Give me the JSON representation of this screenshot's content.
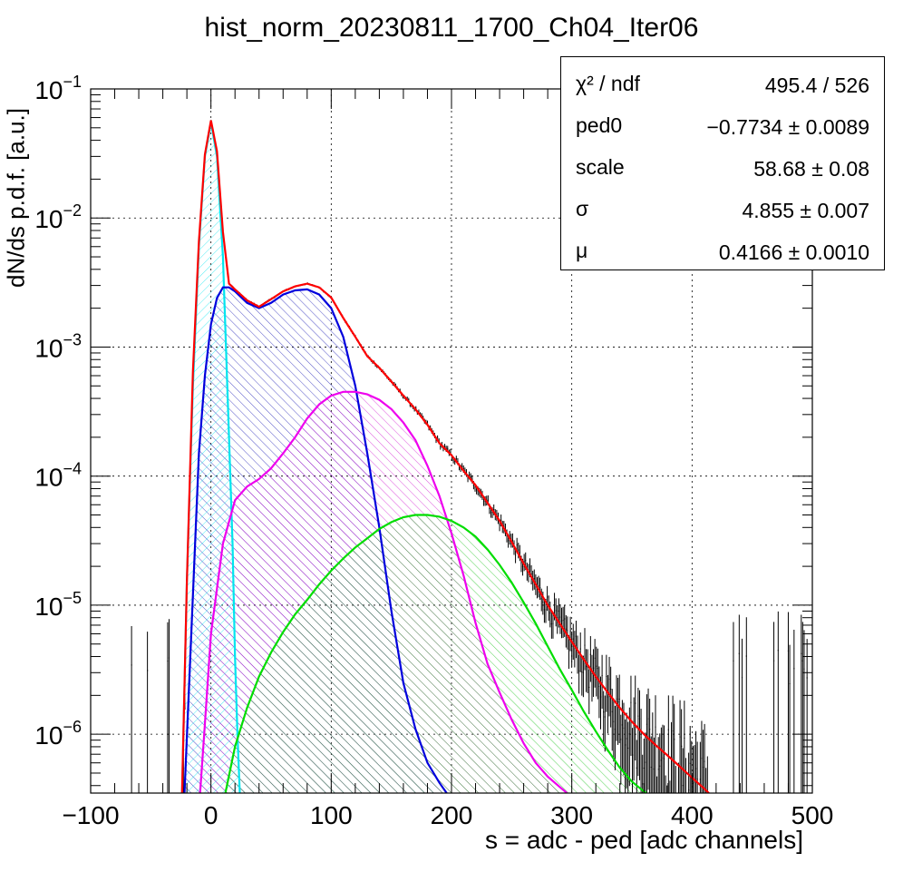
{
  "chart_data": {
    "type": "line",
    "title": "hist_norm_20230811_1700_Ch04_Iter06",
    "xlabel": "s = adc - ped [adc channels]",
    "ylabel": "dN/ds p.d.f. [a.u.]",
    "xlim": [
      -100,
      500
    ],
    "ylim": [
      3.5e-07,
      0.1
    ],
    "yscale": "log",
    "grid": true,
    "xticks": [
      -100,
      0,
      100,
      200,
      300,
      400,
      500
    ],
    "xtick_labels": [
      "−100",
      "0",
      "100",
      "200",
      "300",
      "400",
      "500"
    ],
    "yticks": [
      1e-06,
      1e-05,
      0.0001,
      0.001,
      0.01,
      0.1
    ],
    "ytick_labels": [
      {
        "base": "10",
        "exp": "−6"
      },
      {
        "base": "10",
        "exp": "−5"
      },
      {
        "base": "10",
        "exp": "−4"
      },
      {
        "base": "10",
        "exp": "−3"
      },
      {
        "base": "10",
        "exp": "−2"
      },
      {
        "base": "10",
        "exp": "−1"
      }
    ],
    "series": [
      {
        "color": "#00e5ee",
        "x": [
          -24,
          -20,
          -15,
          -10,
          -5,
          0,
          5,
          10,
          15,
          18,
          20,
          22,
          24
        ],
        "y": [
          3.5e-07,
          1.5e-05,
          0.0005,
          0.006,
          0.03,
          0.055,
          0.03,
          0.005,
          0.0002,
          3e-05,
          4e-06,
          1e-06,
          3.5e-07
        ]
      },
      {
        "color": "#0000dd",
        "x": [
          -22,
          -15,
          -10,
          -5,
          0,
          5,
          10,
          15,
          20,
          30,
          40,
          50,
          60,
          70,
          80,
          90,
          100,
          110,
          120,
          130,
          140,
          150,
          160,
          170,
          180,
          190,
          196
        ],
        "y": [
          3.5e-07,
          1.2e-05,
          0.00015,
          0.0006,
          0.0015,
          0.0024,
          0.0029,
          0.0029,
          0.0027,
          0.0022,
          0.002,
          0.0022,
          0.00255,
          0.00275,
          0.0028,
          0.00255,
          0.002,
          0.0012,
          0.0005,
          0.00015,
          4e-05,
          9e-06,
          2.5e-06,
          1.1e-06,
          6e-07,
          4.2e-07,
          3.5e-07
        ]
      },
      {
        "color": "#ee00ee",
        "x": [
          -9,
          -5,
          0,
          10,
          20,
          30,
          40,
          50,
          60,
          70,
          80,
          90,
          100,
          110,
          120,
          130,
          140,
          150,
          160,
          170,
          180,
          190,
          200,
          210,
          220,
          230,
          240,
          250,
          260,
          270,
          280,
          290,
          296
        ],
        "y": [
          3.5e-07,
          1.2e-06,
          6e-06,
          3e-05,
          6.5e-05,
          8.3e-05,
          9.5e-05,
          0.000115,
          0.00015,
          0.0002,
          0.00028,
          0.00036,
          0.00042,
          0.00045,
          0.00045,
          0.00043,
          0.00039,
          0.00033,
          0.00026,
          0.00019,
          0.00012,
          7e-05,
          3.6e-05,
          1.7e-05,
          7.3e-06,
          3.5e-06,
          2.1e-06,
          1.3e-06,
          8.5e-07,
          6e-07,
          4.7e-07,
          3.9e-07,
          3.5e-07
        ]
      },
      {
        "color": "#00dd00",
        "x": [
          12,
          20,
          30,
          40,
          50,
          60,
          70,
          80,
          90,
          100,
          110,
          120,
          130,
          140,
          150,
          160,
          170,
          180,
          190,
          200,
          210,
          220,
          230,
          240,
          250,
          260,
          270,
          280,
          290,
          300,
          310,
          320,
          330,
          340,
          350,
          360,
          362
        ],
        "y": [
          3.5e-07,
          8e-07,
          1.6e-06,
          2.8e-06,
          4.3e-06,
          6.2e-06,
          8.5e-06,
          1.1e-05,
          1.45e-05,
          1.85e-05,
          2.3e-05,
          2.8e-05,
          3.3e-05,
          3.9e-05,
          4.4e-05,
          4.8e-05,
          5e-05,
          5e-05,
          4.85e-05,
          4.5e-05,
          4e-05,
          3.4e-05,
          2.7e-05,
          2.05e-05,
          1.5e-05,
          1.05e-05,
          7.2e-06,
          4.8e-06,
          3.2e-06,
          2.2e-06,
          1.5e-06,
          1.05e-06,
          7.5e-07,
          5.5e-07,
          4.3e-07,
          3.6e-07,
          3.5e-07
        ]
      },
      {
        "color": "#ff0000",
        "x": [
          -24,
          -20,
          -15,
          -10,
          -5,
          0,
          5,
          10,
          15,
          20,
          30,
          40,
          50,
          60,
          70,
          80,
          90,
          100,
          110,
          120,
          130,
          140,
          150,
          160,
          170,
          180,
          190,
          200,
          210,
          220,
          230,
          240,
          250,
          260,
          270,
          280,
          290,
          300,
          310,
          320,
          330,
          340,
          350,
          360,
          370,
          380,
          390,
          400,
          410,
          414
        ],
        "y": [
          3.5e-07,
          1.5e-05,
          0.00065,
          0.0066,
          0.031,
          0.057,
          0.033,
          0.0078,
          0.0031,
          0.0028,
          0.0023,
          0.00205,
          0.00235,
          0.0027,
          0.00295,
          0.0031,
          0.0029,
          0.00242,
          0.00168,
          0.0012,
          0.00085,
          0.00069,
          0.00054,
          0.00042,
          0.00033,
          0.00025,
          0.00018,
          0.000145,
          0.00011,
          8.5e-05,
          6.2e-05,
          4.5e-05,
          3.1e-05,
          2.1e-05,
          1.45e-05,
          1e-05,
          7.2e-06,
          5.2e-06,
          3.8e-06,
          2.8e-06,
          2.1e-06,
          1.6e-06,
          1.25e-06,
          1e-06,
          8.2e-07,
          6.8e-07,
          5.6e-07,
          4.6e-07,
          3.8e-07,
          3.5e-07
        ]
      }
    ],
    "stats": [
      {
        "name": "χ² / ndf",
        "value": "495.4 / 526"
      },
      {
        "name": "ped0",
        "value": "−0.7734 ± 0.0089"
      },
      {
        "name": "scale",
        "value": "58.68 ± 0.08"
      },
      {
        "name": "σ",
        "value": "4.855 ± 0.007"
      },
      {
        "name": "μ",
        "value": "0.4166 ± 0.0010"
      }
    ]
  }
}
